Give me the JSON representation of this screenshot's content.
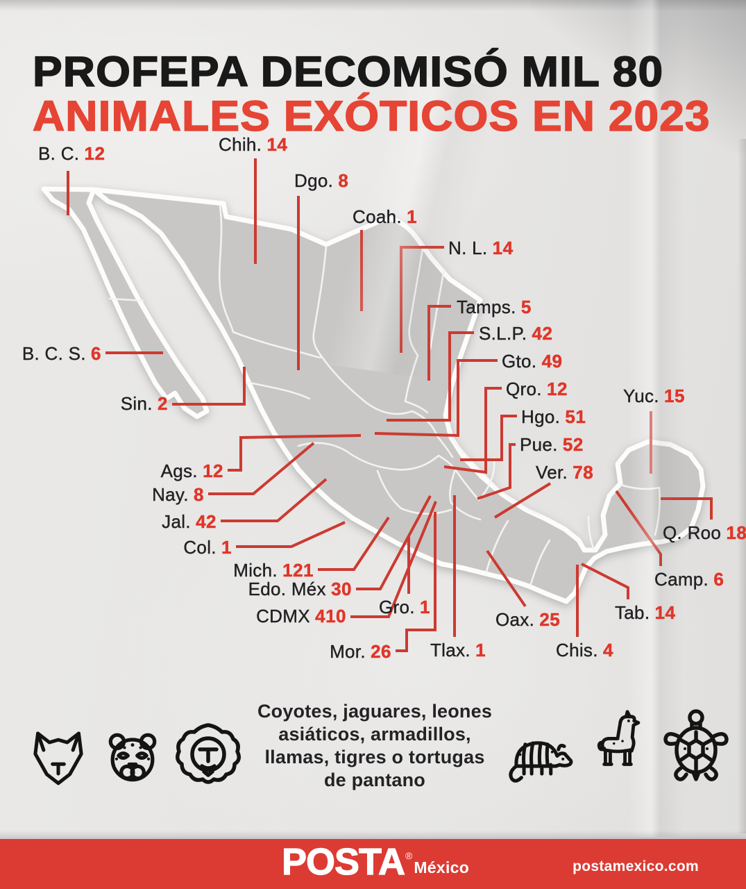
{
  "title": {
    "line1": "PROFEPA DECOMISÓ MIL 80",
    "line2": "ANIMALES EXÓTICOS EN 2023"
  },
  "chart_data": {
    "type": "map",
    "region": "México por estado",
    "title": "PROFEPA decomisó mil 80 animales exóticos en 2023",
    "total": 1080,
    "unit": "animales exóticos decomisados",
    "states": [
      {
        "id": "bc",
        "abbr": "B. C.",
        "value": 12
      },
      {
        "id": "chih",
        "abbr": "Chih.",
        "value": 14
      },
      {
        "id": "dgo",
        "abbr": "Dgo.",
        "value": 8
      },
      {
        "id": "coah",
        "abbr": "Coah.",
        "value": 1
      },
      {
        "id": "nl",
        "abbr": "N. L.",
        "value": 14
      },
      {
        "id": "tamps",
        "abbr": "Tamps.",
        "value": 5
      },
      {
        "id": "slp",
        "abbr": "S.L.P.",
        "value": 42
      },
      {
        "id": "gto",
        "abbr": "Gto.",
        "value": 49
      },
      {
        "id": "qro",
        "abbr": "Qro.",
        "value": 12
      },
      {
        "id": "hgo",
        "abbr": "Hgo.",
        "value": 51
      },
      {
        "id": "pue",
        "abbr": "Pue.",
        "value": 52
      },
      {
        "id": "ver",
        "abbr": "Ver.",
        "value": 78
      },
      {
        "id": "yuc",
        "abbr": "Yuc.",
        "value": 15
      },
      {
        "id": "qroo",
        "abbr": "Q. Roo",
        "value": 18
      },
      {
        "id": "camp",
        "abbr": "Camp.",
        "value": 6
      },
      {
        "id": "tab",
        "abbr": "Tab.",
        "value": 14
      },
      {
        "id": "chis",
        "abbr": "Chis.",
        "value": 4
      },
      {
        "id": "oax",
        "abbr": "Oax.",
        "value": 25
      },
      {
        "id": "tlax",
        "abbr": "Tlax.",
        "value": 1
      },
      {
        "id": "mor",
        "abbr": "Mor.",
        "value": 26
      },
      {
        "id": "gro",
        "abbr": "Gro.",
        "value": 1
      },
      {
        "id": "cdmx",
        "abbr": "CDMX",
        "value": 410
      },
      {
        "id": "edomex",
        "abbr": "Edo. Méx",
        "value": 30
      },
      {
        "id": "mich",
        "abbr": "Mich.",
        "value": 121
      },
      {
        "id": "col",
        "abbr": "Col.",
        "value": 1
      },
      {
        "id": "jal",
        "abbr": "Jal.",
        "value": 42
      },
      {
        "id": "nay",
        "abbr": "Nay.",
        "value": 8
      },
      {
        "id": "ags",
        "abbr": "Ags.",
        "value": 12
      },
      {
        "id": "sin",
        "abbr": "Sin.",
        "value": 2
      },
      {
        "id": "bcs",
        "abbr": "B. C. S.",
        "value": 6
      }
    ]
  },
  "legend": {
    "lines": [
      "Coyotes, jaguares, leones",
      "asiáticos, armadillos,",
      "llamas, tigres o tortugas",
      "de pantano"
    ]
  },
  "icons": {
    "left": [
      "coyote-icon",
      "jaguar-icon",
      "lion-icon"
    ],
    "right": [
      "armadillo-icon",
      "llama-icon",
      "turtle-icon"
    ]
  },
  "footer": {
    "brand": "POSTA",
    "trademark": "®",
    "region": "México",
    "website": "postamexico.com"
  },
  "colors": {
    "accent_red": "#cc3a31",
    "value_red": "#e0362a",
    "title_red": "#e64434",
    "footer_red": "#dc3b33",
    "map_fill": "#c8c7c5",
    "paper": "#e7e6e4",
    "text_black": "#191919"
  }
}
